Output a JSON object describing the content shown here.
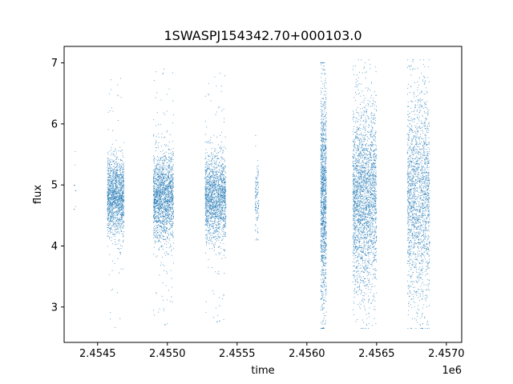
{
  "chart_data": {
    "type": "scatter",
    "title": "1SWASPJ154342.70+000103.0",
    "xlabel": "time",
    "ylabel": "flux",
    "x_offset_label": "1e6",
    "xlim": [
      2454260,
      2457110
    ],
    "ylim": [
      2.42,
      7.27
    ],
    "x_ticks": [
      2454500,
      2455000,
      2455500,
      2456000,
      2456500,
      2457000
    ],
    "x_tick_labels": [
      "2.4545",
      "2.4550",
      "2.4555",
      "2.4560",
      "2.4565",
      "2.4570"
    ],
    "y_ticks": [
      3,
      4,
      5,
      6,
      7
    ],
    "y_tick_labels": [
      "3",
      "4",
      "5",
      "6",
      "7"
    ],
    "grid": false,
    "legend": "none",
    "marker_color": "#1f77b4",
    "series": [
      {
        "clusters": [
          {
            "x_start": 2454330,
            "x_end": 2454345,
            "center": 4.85,
            "spread": 0.5,
            "min": 4.6,
            "max": 6.0,
            "count": 10
          },
          {
            "x_start": 2454570,
            "x_end": 2454690,
            "center": 4.8,
            "spread": 0.32,
            "min": 2.65,
            "max": 6.85,
            "count": 1400
          },
          {
            "x_start": 2454900,
            "x_end": 2455045,
            "center": 4.8,
            "spread": 0.36,
            "min": 2.65,
            "max": 6.95,
            "count": 1700
          },
          {
            "x_start": 2455270,
            "x_end": 2455420,
            "center": 4.8,
            "spread": 0.36,
            "min": 2.7,
            "max": 6.9,
            "count": 1600
          },
          {
            "x_start": 2455630,
            "x_end": 2455655,
            "center": 4.75,
            "spread": 0.28,
            "min": 4.1,
            "max": 5.85,
            "count": 120
          },
          {
            "x_start": 2456100,
            "x_end": 2456140,
            "center": 4.8,
            "spread": 0.9,
            "min": 2.65,
            "max": 7.0,
            "count": 1200
          },
          {
            "x_start": 2456330,
            "x_end": 2456500,
            "center": 4.8,
            "spread": 0.75,
            "min": 2.65,
            "max": 7.05,
            "count": 2400
          },
          {
            "x_start": 2456720,
            "x_end": 2456880,
            "center": 4.8,
            "spread": 0.85,
            "min": 2.65,
            "max": 7.05,
            "count": 1800
          }
        ]
      }
    ]
  }
}
